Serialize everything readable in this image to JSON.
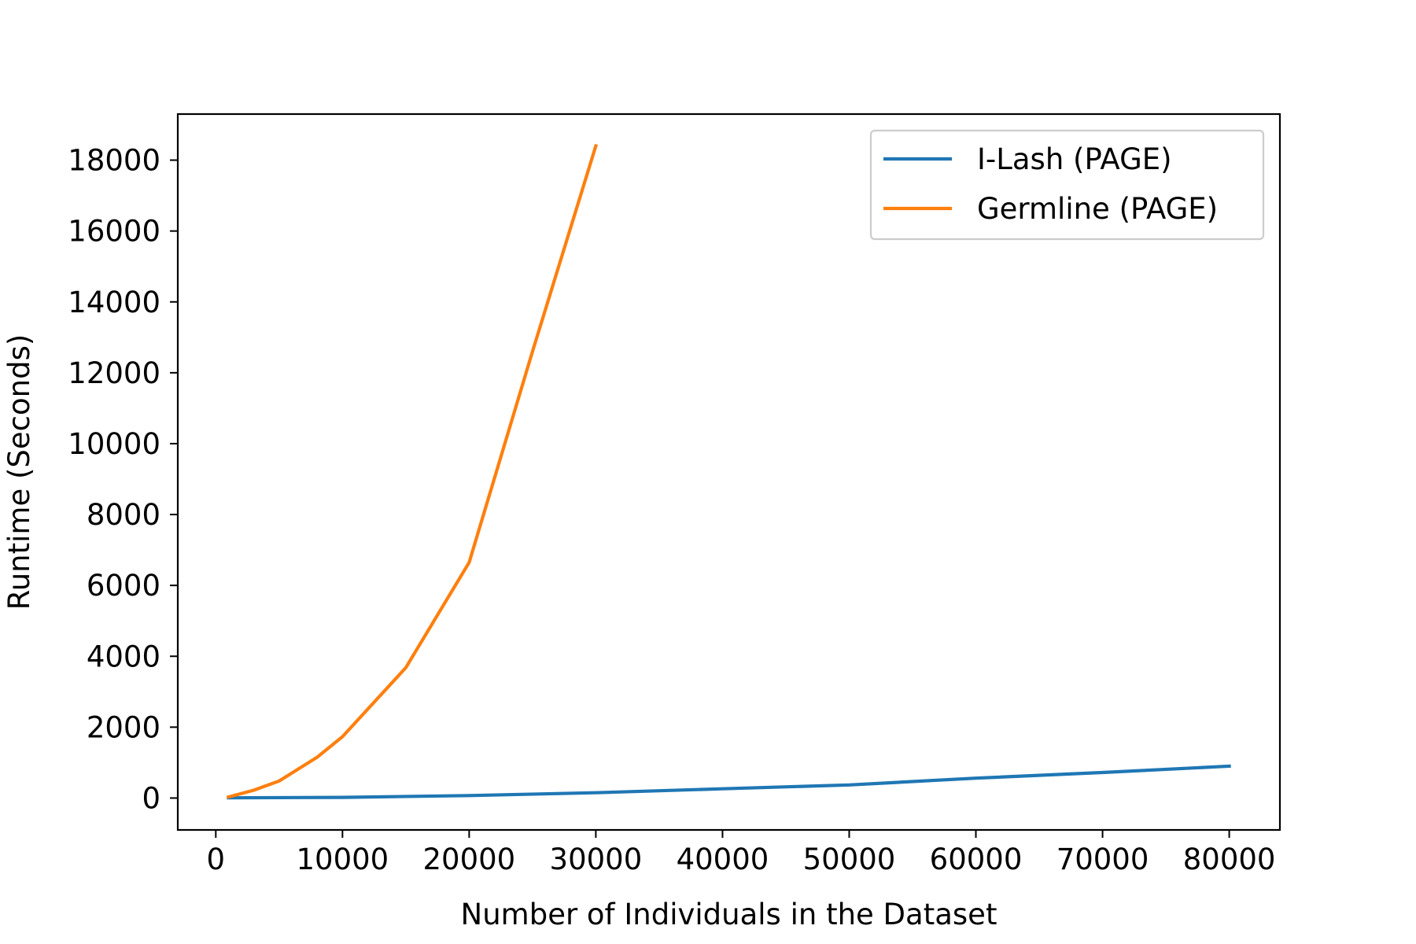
{
  "chart_data": {
    "type": "line",
    "title": "",
    "xlabel": "Number of Individuals in the Dataset",
    "ylabel": "Runtime (Seconds)",
    "xlim": [
      -3000,
      84000
    ],
    "ylim": [
      -900,
      19300
    ],
    "xticks": [
      0,
      10000,
      20000,
      30000,
      40000,
      50000,
      60000,
      70000,
      80000
    ],
    "yticks": [
      0,
      2000,
      4000,
      6000,
      8000,
      10000,
      12000,
      14000,
      16000,
      18000
    ],
    "grid": false,
    "legend_position": "top-right",
    "series": [
      {
        "name": "I-Lash (PAGE)",
        "color": "#1f77b4",
        "x": [
          1000,
          10000,
          20000,
          30000,
          40000,
          50000,
          60000,
          70000,
          80000
        ],
        "y": [
          5,
          20,
          70,
          150,
          260,
          370,
          560,
          720,
          900
        ]
      },
      {
        "name": "Germline (PAGE)",
        "color": "#ff7f0e",
        "x": [
          1000,
          3000,
          5000,
          8000,
          10000,
          15000,
          20000,
          25000,
          30000
        ],
        "y": [
          30,
          220,
          480,
          1150,
          1730,
          3680,
          6650,
          12600,
          18400
        ]
      }
    ]
  }
}
